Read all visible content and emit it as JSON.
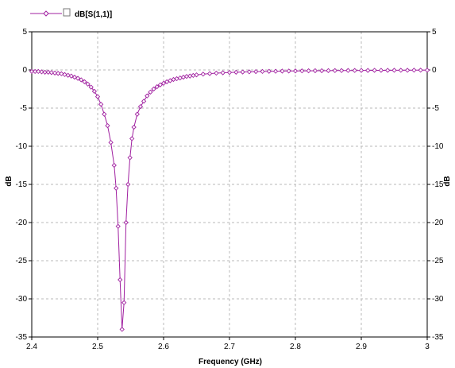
{
  "chart_data": {
    "type": "line",
    "xlabel": "Frequency (GHz)",
    "ylabel": "dB",
    "ylabel_right": "dB",
    "xlim": [
      2.4,
      3.0
    ],
    "ylim": [
      -35,
      5
    ],
    "x_ticks": [
      2.4,
      2.5,
      2.6,
      2.7,
      2.8,
      2.9,
      3.0
    ],
    "x_tick_labels": [
      "2.4",
      "2.5",
      "2.6",
      "2.7",
      "2.8",
      "2.9",
      "3"
    ],
    "y_ticks": [
      5,
      0,
      -5,
      -10,
      -15,
      -20,
      -25,
      -30,
      -35
    ],
    "y_tick_labels": [
      "5",
      "0",
      "-5",
      "-10",
      "-15",
      "-20",
      "-25",
      "-30",
      "-35"
    ],
    "grid": true,
    "legend_position": "top-left",
    "series": [
      {
        "name": "dB[S(1,1)]",
        "color": "#a020a0",
        "marker": "diamond",
        "x": [
          2.4,
          2.405,
          2.41,
          2.415,
          2.42,
          2.425,
          2.43,
          2.435,
          2.44,
          2.445,
          2.45,
          2.455,
          2.46,
          2.465,
          2.47,
          2.475,
          2.48,
          2.485,
          2.49,
          2.495,
          2.5,
          2.505,
          2.51,
          2.515,
          2.52,
          2.525,
          2.528,
          2.531,
          2.534,
          2.537,
          2.54,
          2.543,
          2.546,
          2.549,
          2.552,
          2.555,
          2.56,
          2.565,
          2.57,
          2.575,
          2.58,
          2.585,
          2.59,
          2.595,
          2.6,
          2.605,
          2.61,
          2.615,
          2.62,
          2.625,
          2.63,
          2.635,
          2.64,
          2.645,
          2.65,
          2.66,
          2.67,
          2.68,
          2.69,
          2.7,
          2.71,
          2.72,
          2.73,
          2.74,
          2.75,
          2.76,
          2.77,
          2.78,
          2.79,
          2.8,
          2.81,
          2.82,
          2.83,
          2.84,
          2.85,
          2.86,
          2.87,
          2.88,
          2.89,
          2.9,
          2.91,
          2.92,
          2.93,
          2.94,
          2.95,
          2.96,
          2.97,
          2.98,
          2.99,
          3.0
        ],
        "values": [
          -0.2,
          -0.2,
          -0.2,
          -0.25,
          -0.3,
          -0.3,
          -0.35,
          -0.4,
          -0.45,
          -0.5,
          -0.6,
          -0.7,
          -0.8,
          -0.95,
          -1.1,
          -1.3,
          -1.55,
          -1.85,
          -2.25,
          -2.8,
          -3.5,
          -4.5,
          -5.8,
          -7.3,
          -9.5,
          -12.5,
          -15.5,
          -20.5,
          -27.5,
          -34.0,
          -30.5,
          -20.0,
          -15.0,
          -11.5,
          -9.0,
          -7.5,
          -5.8,
          -4.8,
          -4.1,
          -3.4,
          -2.9,
          -2.5,
          -2.2,
          -1.95,
          -1.75,
          -1.55,
          -1.4,
          -1.25,
          -1.15,
          -1.05,
          -0.95,
          -0.85,
          -0.8,
          -0.72,
          -0.65,
          -0.55,
          -0.48,
          -0.42,
          -0.37,
          -0.33,
          -0.3,
          -0.27,
          -0.25,
          -0.22,
          -0.2,
          -0.18,
          -0.17,
          -0.15,
          -0.14,
          -0.13,
          -0.12,
          -0.11,
          -0.1,
          -0.1,
          -0.09,
          -0.08,
          -0.08,
          -0.07,
          -0.07,
          -0.06,
          -0.06,
          -0.05,
          -0.05,
          -0.05,
          -0.04,
          -0.04,
          -0.04,
          -0.03,
          -0.03,
          -0.03
        ]
      }
    ]
  }
}
